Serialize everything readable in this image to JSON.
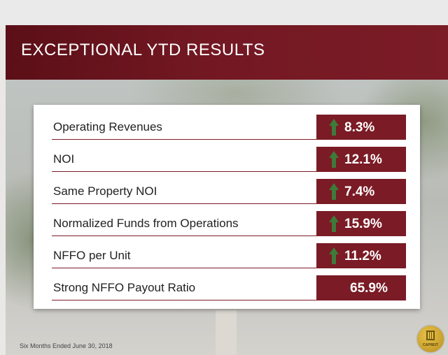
{
  "slide": {
    "title": "EXCEPTIONAL YTD RESULTS",
    "footer": "Six Months Ended June 30, 2018",
    "logo_text": "CAPREIT"
  },
  "colors": {
    "accent": "#7a1b25",
    "arrow": "#3e7a3a",
    "text": "#222222"
  },
  "metrics": [
    {
      "label": "Operating Revenues",
      "value": "8.3%",
      "arrow": "up-arrow-icon"
    },
    {
      "label": "NOI",
      "value": "12.1%",
      "arrow": "up-arrow-icon"
    },
    {
      "label": "Same Property NOI",
      "value": "7.4%",
      "arrow": "up-arrow-icon"
    },
    {
      "label": "Normalized Funds from Operations",
      "value": "15.9%",
      "arrow": "up-arrow-icon"
    },
    {
      "label": "NFFO per Unit",
      "value": "11.2%",
      "arrow": "up-arrow-icon"
    },
    {
      "label": "Strong NFFO Payout Ratio",
      "value": "65.9%"
    }
  ]
}
